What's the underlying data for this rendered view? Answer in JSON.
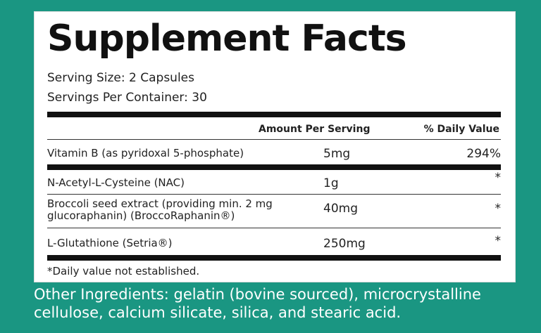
{
  "header": {
    "title": "Supplement Facts",
    "serving_size": "Serving Size: 2 Capsules",
    "servings_per_container": "Servings Per Container: 30"
  },
  "table": {
    "columns": [
      "Amount Per Serving",
      "% Daily Value"
    ],
    "rows": [
      [
        "Vitamin B (as pyridoxal 5-phosphate)",
        "5mg",
        "294%"
      ],
      [
        "N-Acetyl-L-Cysteine (NAC)",
        "1g",
        "*"
      ],
      [
        "Broccoli seed extract (providing min. 2 mg glucoraphanin) (BroccoRaphanin®)",
        "40mg",
        "*"
      ],
      [
        "L-Glutathione (Setria®)",
        "250mg",
        "*"
      ]
    ]
  },
  "footnote": "*Daily value not established.",
  "other_ingredients": "Other Ingredients: gelatin (bovine sourced), microcrystalline cellulose, calcium silicate, silica, and stearic acid."
}
